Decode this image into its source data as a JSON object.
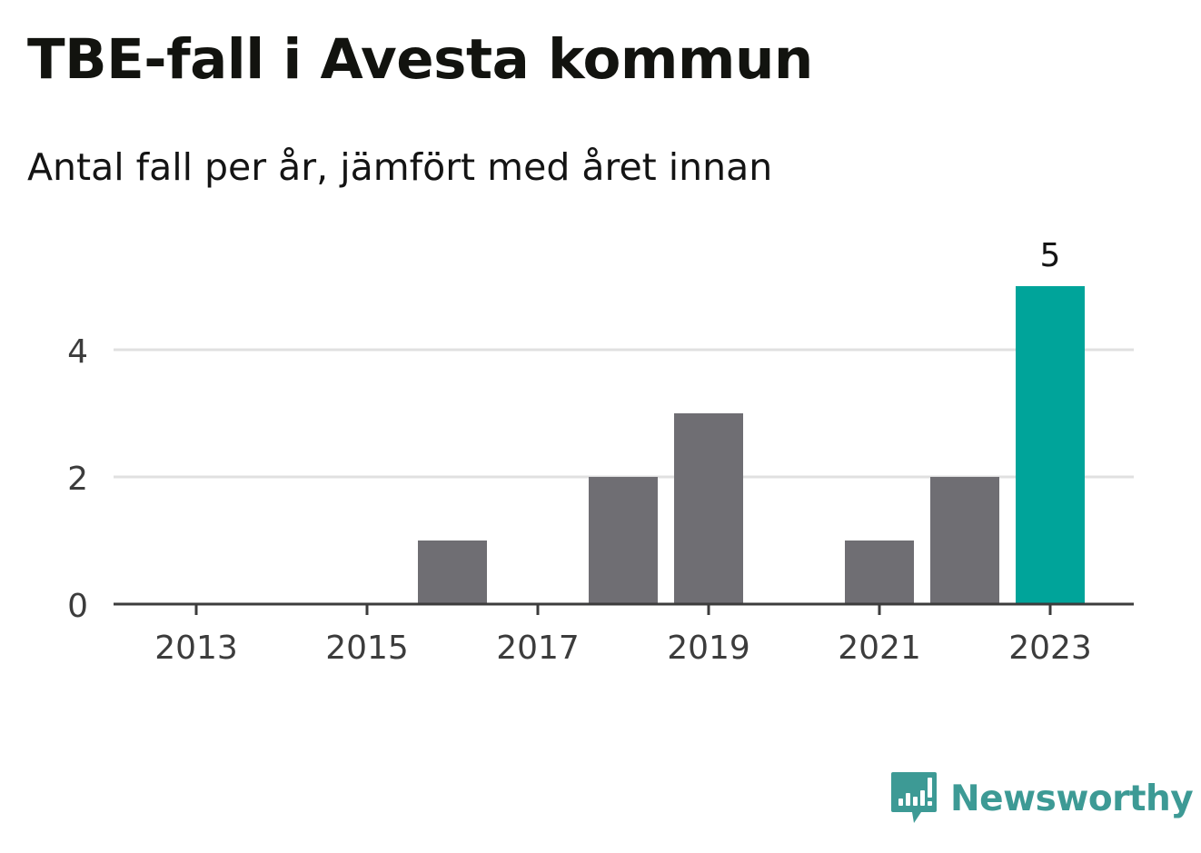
{
  "header": {
    "title": "TBE-fall i Avesta kommun",
    "subtitle": "Antal fall per år, jämfört med året innan"
  },
  "chart_data": {
    "type": "bar",
    "title": "TBE-fall i Avesta kommun",
    "subtitle": "Antal fall per år, jämfört med året innan",
    "categories": [
      "2013",
      "2014",
      "2015",
      "2016",
      "2017",
      "2018",
      "2019",
      "2020",
      "2021",
      "2022",
      "2023"
    ],
    "values": [
      0,
      0,
      0,
      1,
      0,
      2,
      3,
      0,
      1,
      2,
      5
    ],
    "x_tick_labels": [
      "2013",
      "2015",
      "2017",
      "2019",
      "2021",
      "2023"
    ],
    "y_ticks": [
      0,
      2,
      4
    ],
    "ylim": [
      0,
      5
    ],
    "grid": true,
    "highlight_category": "2023",
    "value_labels": [
      {
        "category": "2023",
        "text": "5"
      }
    ],
    "colors": {
      "bar": "#6f6e73",
      "highlight": "#00a49a",
      "grid": "#e0e0e0",
      "axis": "#3c3c3c",
      "tick_text": "#3c3c3c",
      "label_text": "#141414"
    },
    "xlabel": "",
    "ylabel": ""
  },
  "brand": {
    "name": "Newsworthy",
    "icon": "newsworthy-logo-icon",
    "color": "#3d9a95"
  }
}
